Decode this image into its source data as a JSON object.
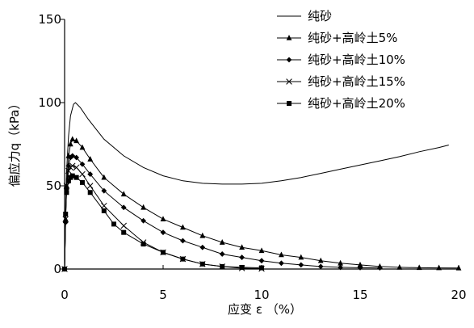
{
  "chart_data": {
    "type": "line",
    "title": "",
    "xlabel": "应变 ε （%）",
    "ylabel": "偏应力q（kPa）",
    "xlim": [
      0,
      20
    ],
    "ylim": [
      0,
      150
    ],
    "xticks": [
      "0",
      "5",
      "10",
      "15",
      "20"
    ],
    "yticks": [
      "0",
      "50",
      "100",
      "150"
    ],
    "grid": false,
    "legend_position": "top-right",
    "series": [
      {
        "name": "纯砂",
        "marker": "none",
        "points": [
          [
            0,
            0
          ],
          [
            0.05,
            35
          ],
          [
            0.1,
            58
          ],
          [
            0.2,
            80
          ],
          [
            0.3,
            92
          ],
          [
            0.45,
            99
          ],
          [
            0.55,
            100
          ],
          [
            0.8,
            97
          ],
          [
            1.2,
            90
          ],
          [
            2,
            78
          ],
          [
            3,
            68
          ],
          [
            4,
            61
          ],
          [
            5,
            56
          ],
          [
            6,
            53
          ],
          [
            7,
            51.5
          ],
          [
            8,
            51
          ],
          [
            9,
            51
          ],
          [
            10,
            51.5
          ],
          [
            11,
            53
          ],
          [
            12,
            55
          ],
          [
            13,
            57.5
          ],
          [
            14,
            60
          ],
          [
            15,
            62.5
          ],
          [
            16,
            65
          ],
          [
            17,
            67.5
          ],
          [
            18,
            70.5
          ],
          [
            19,
            73
          ],
          [
            19.5,
            74.5
          ]
        ]
      },
      {
        "name": "纯砂+高岭土5%",
        "marker": "triangle",
        "points": [
          [
            0,
            0
          ],
          [
            0.05,
            30
          ],
          [
            0.1,
            50
          ],
          [
            0.2,
            68
          ],
          [
            0.3,
            75
          ],
          [
            0.4,
            78
          ],
          [
            0.6,
            77
          ],
          [
            0.9,
            73
          ],
          [
            1.3,
            66
          ],
          [
            2,
            55
          ],
          [
            3,
            45
          ],
          [
            4,
            37
          ],
          [
            5,
            30
          ],
          [
            6,
            25
          ],
          [
            7,
            20
          ],
          [
            8,
            16
          ],
          [
            9,
            13
          ],
          [
            10,
            11
          ],
          [
            11,
            8.5
          ],
          [
            12,
            7
          ],
          [
            13,
            5
          ],
          [
            14,
            3.5
          ],
          [
            15,
            2.5
          ],
          [
            16,
            1.5
          ],
          [
            17,
            1
          ],
          [
            18,
            0.8
          ],
          [
            19,
            0.7
          ],
          [
            20,
            0.6
          ]
        ]
      },
      {
        "name": "纯砂+高岭土10%",
        "marker": "diamond",
        "points": [
          [
            0,
            0
          ],
          [
            0.05,
            28
          ],
          [
            0.1,
            48
          ],
          [
            0.2,
            62
          ],
          [
            0.3,
            67
          ],
          [
            0.4,
            68
          ],
          [
            0.6,
            67
          ],
          [
            0.9,
            63
          ],
          [
            1.3,
            57
          ],
          [
            2,
            47
          ],
          [
            3,
            37
          ],
          [
            4,
            29
          ],
          [
            5,
            22
          ],
          [
            6,
            17
          ],
          [
            7,
            13
          ],
          [
            8,
            9
          ],
          [
            9,
            7
          ],
          [
            10,
            5
          ],
          [
            11,
            3.5
          ],
          [
            12,
            2.5
          ],
          [
            13,
            1.5
          ],
          [
            14,
            1
          ],
          [
            15,
            0.8
          ],
          [
            16,
            0.7
          ]
        ]
      },
      {
        "name": "纯砂+高岭土15%",
        "marker": "x",
        "points": [
          [
            0,
            0
          ],
          [
            0.05,
            30
          ],
          [
            0.1,
            50
          ],
          [
            0.2,
            59
          ],
          [
            0.3,
            61
          ],
          [
            0.4,
            62
          ],
          [
            0.6,
            61
          ],
          [
            0.9,
            57
          ],
          [
            1.3,
            50
          ],
          [
            2,
            38
          ],
          [
            3,
            26
          ],
          [
            4,
            16
          ],
          [
            5,
            10
          ],
          [
            6,
            6
          ],
          [
            7,
            3
          ],
          [
            8,
            1.5
          ],
          [
            9,
            0.5
          ],
          [
            10,
            0.2
          ]
        ]
      },
      {
        "name": "纯砂+高岭土20%",
        "marker": "square",
        "points": [
          [
            0,
            0
          ],
          [
            0.05,
            33
          ],
          [
            0.1,
            46
          ],
          [
            0.2,
            53
          ],
          [
            0.3,
            55
          ],
          [
            0.4,
            56
          ],
          [
            0.6,
            55
          ],
          [
            0.9,
            52
          ],
          [
            1.3,
            46
          ],
          [
            2,
            35
          ],
          [
            2.5,
            27
          ],
          [
            3,
            22
          ],
          [
            4,
            15
          ],
          [
            5,
            10
          ],
          [
            6,
            6
          ],
          [
            7,
            3
          ],
          [
            8,
            1.5
          ],
          [
            9,
            1
          ],
          [
            10,
            0.7
          ]
        ]
      }
    ]
  }
}
